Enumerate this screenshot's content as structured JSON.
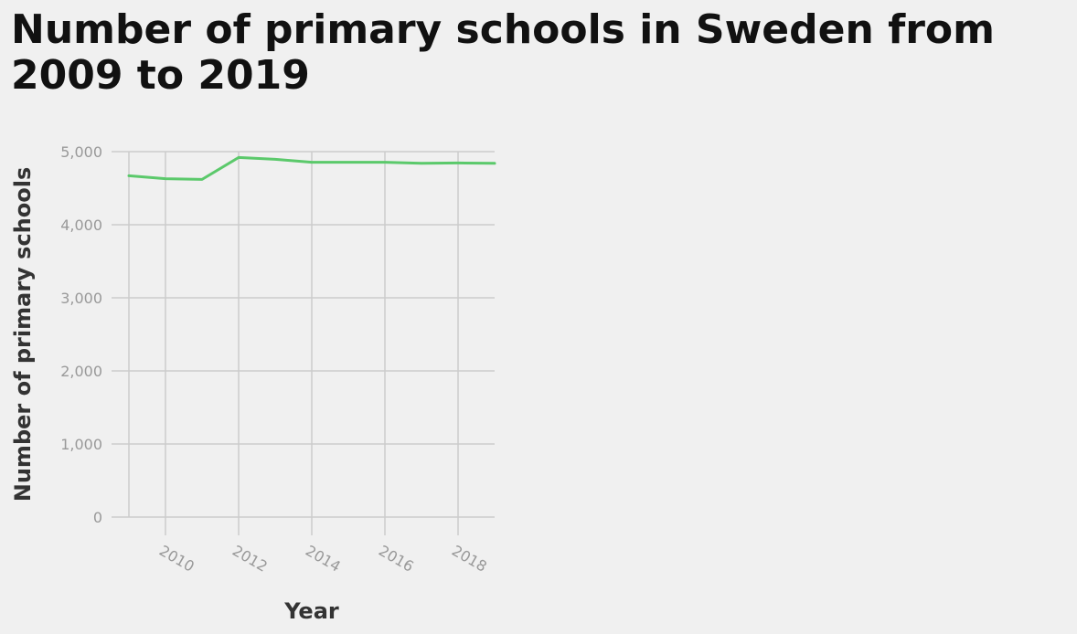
{
  "chart_data": {
    "type": "line",
    "title": "Number of primary schools in Sweden from 2009 to 2019",
    "xlabel": "Year",
    "ylabel": "Number of primary schools",
    "x": [
      2009,
      2010,
      2011,
      2012,
      2013,
      2014,
      2015,
      2016,
      2017,
      2018,
      2019
    ],
    "series": [
      {
        "values": [
          4670,
          4630,
          4620,
          4920,
          4895,
          4855,
          4855,
          4855,
          4840,
          4845,
          4840
        ],
        "color": "#5bc96b"
      }
    ],
    "xlim": [
      2009,
      2019
    ],
    "ylim": [
      0,
      5000
    ],
    "x_ticks": [
      "2010",
      "2012",
      "2014",
      "2016",
      "2018"
    ],
    "y_ticks": [
      "0",
      "1,000",
      "2,000",
      "3,000",
      "4,000",
      "5,000"
    ],
    "grid": true,
    "legend": "none"
  }
}
